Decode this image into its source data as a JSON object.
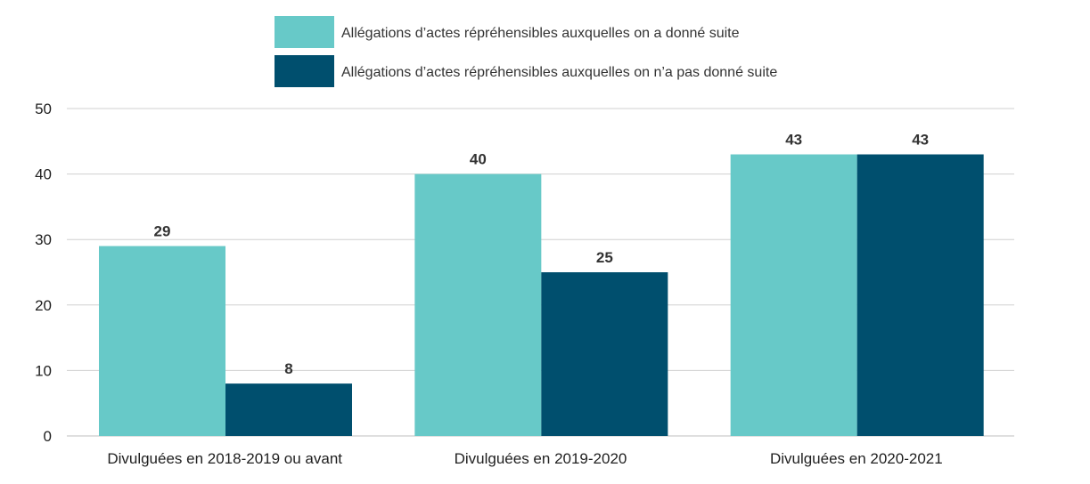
{
  "chart_data": {
    "type": "bar",
    "title": "",
    "xlabel": "",
    "ylabel": "",
    "ylim": [
      0,
      50
    ],
    "yticks": [
      0,
      10,
      20,
      30,
      40,
      50
    ],
    "grid": true,
    "legend_position": "top",
    "categories": [
      "Divulguées en 2018-2019 ou avant",
      "Divulguées en 2019-2020",
      "Divulguées en 2020-2021"
    ],
    "series": [
      {
        "name": "Allégations d’actes répréhensibles auxquelles on a donné suite",
        "color": "#67c9c8",
        "values": [
          29,
          40,
          43
        ]
      },
      {
        "name": "Allégations d’actes répréhensibles auxquelles on n’a pas donné suite",
        "color": "#004f6e",
        "values": [
          8,
          25,
          43
        ]
      }
    ]
  }
}
